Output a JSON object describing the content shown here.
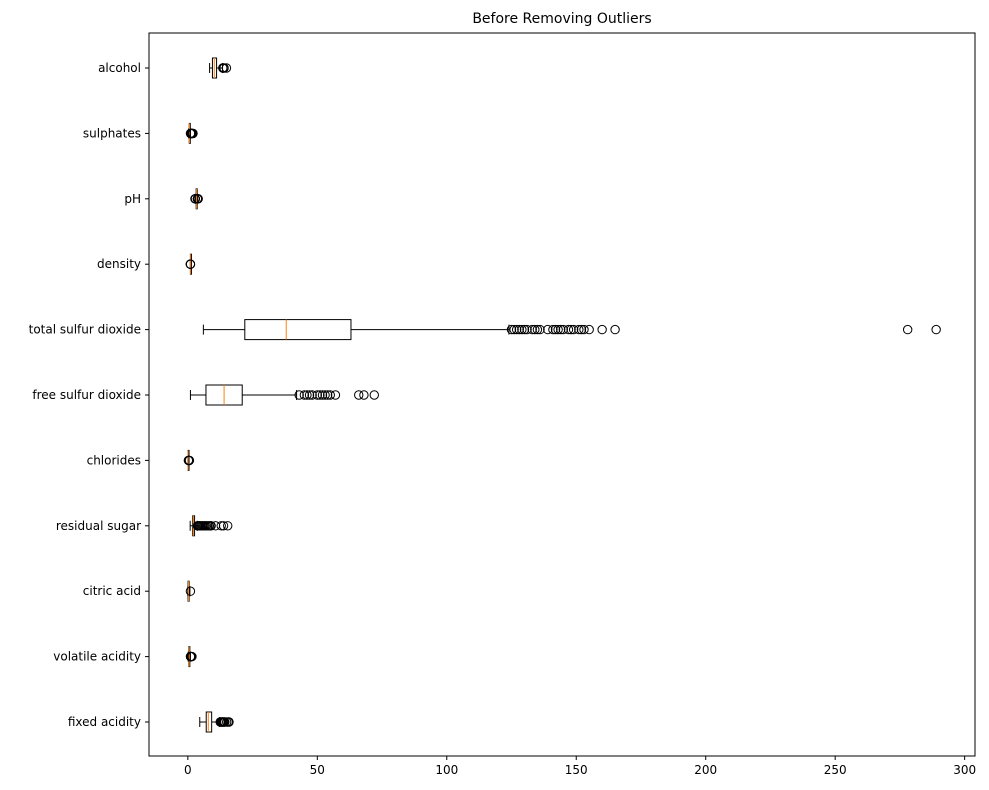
{
  "chart_data": {
    "type": "boxplot",
    "orientation": "horizontal",
    "title": "Before Removing Outliers",
    "xlabel": "",
    "ylabel": "",
    "xlim": [
      -15,
      304
    ],
    "xticks": [
      0,
      50,
      100,
      150,
      200,
      250,
      300
    ],
    "grid": false,
    "box_color": "#000000",
    "median_color": "#ff7f0e",
    "categories": [
      "fixed acidity",
      "volatile acidity",
      "citric acid",
      "residual sugar",
      "chlorides",
      "free sulfur dioxide",
      "total sulfur dioxide",
      "density",
      "pH",
      "sulphates",
      "alcohol"
    ],
    "boxes": [
      {
        "label": "fixed acidity",
        "whislo": 4.6,
        "q1": 7.1,
        "med": 7.9,
        "q3": 9.2,
        "whishi": 12.3,
        "fliers": [
          12.5,
          12.8,
          13.0,
          13.3,
          13.5,
          13.8,
          14.0,
          14.3,
          15.0,
          15.6,
          15.9
        ]
      },
      {
        "label": "volatile acidity",
        "whislo": 0.12,
        "q1": 0.39,
        "med": 0.52,
        "q3": 0.64,
        "whishi": 1.01,
        "fliers": [
          1.02,
          1.07,
          1.13,
          1.18,
          1.24,
          1.33,
          1.58
        ]
      },
      {
        "label": "citric acid",
        "whislo": 0.0,
        "q1": 0.09,
        "med": 0.26,
        "q3": 0.42,
        "whishi": 0.79,
        "fliers": [
          1.0
        ]
      },
      {
        "label": "residual sugar",
        "whislo": 0.9,
        "q1": 1.9,
        "med": 2.2,
        "q3": 2.6,
        "whishi": 3.6,
        "fliers": [
          3.7,
          4.0,
          4.3,
          4.6,
          5.0,
          5.5,
          5.9,
          6.3,
          6.7,
          7.2,
          7.8,
          8.3,
          8.8,
          9.0,
          10.7,
          12.9,
          13.8,
          15.4
        ]
      },
      {
        "label": "chlorides",
        "whislo": 0.012,
        "q1": 0.07,
        "med": 0.079,
        "q3": 0.09,
        "whishi": 0.119,
        "fliers": [
          0.2,
          0.3,
          0.4,
          0.47,
          0.55,
          0.61
        ]
      },
      {
        "label": "free sulfur dioxide",
        "whislo": 1,
        "q1": 7,
        "med": 14,
        "q3": 21,
        "whishi": 42,
        "fliers": [
          43,
          45,
          46,
          47,
          48,
          50,
          51,
          52,
          53,
          54,
          55,
          57,
          66,
          68,
          72
        ]
      },
      {
        "label": "total sulfur dioxide",
        "whislo": 6,
        "q1": 22,
        "med": 38,
        "q3": 63,
        "whishi": 124,
        "fliers": [
          125,
          126,
          127,
          128,
          129,
          130,
          131,
          133,
          134,
          135,
          136,
          139,
          141,
          142,
          143,
          144,
          145,
          147,
          148,
          149,
          151,
          152,
          153,
          155,
          160,
          165,
          278,
          289
        ]
      },
      {
        "label": "density",
        "whislo": 0.9925,
        "q1": 0.9956,
        "med": 0.9968,
        "q3": 0.9978,
        "whishi": 1.001,
        "fliers": [
          0.99007,
          0.9902,
          1.0026,
          1.0032
        ]
      },
      {
        "label": "pH",
        "whislo": 2.92,
        "q1": 3.21,
        "med": 3.31,
        "q3": 3.4,
        "whishi": 3.68,
        "fliers": [
          2.74,
          2.86,
          2.88,
          2.89,
          3.69,
          3.71,
          3.75,
          3.78,
          3.85,
          3.9,
          4.01
        ]
      },
      {
        "label": "sulphates",
        "whislo": 0.33,
        "q1": 0.55,
        "med": 0.62,
        "q3": 0.73,
        "whishi": 1.0,
        "fliers": [
          1.02,
          1.05,
          1.1,
          1.14,
          1.17,
          1.2,
          1.26,
          1.33,
          1.36,
          1.59,
          1.62,
          1.95,
          2.0
        ]
      },
      {
        "label": "alcohol",
        "whislo": 8.4,
        "q1": 9.5,
        "med": 10.2,
        "q3": 11.1,
        "whishi": 13.4,
        "fliers": [
          13.5,
          13.6,
          14.0,
          14.9
        ]
      }
    ]
  }
}
